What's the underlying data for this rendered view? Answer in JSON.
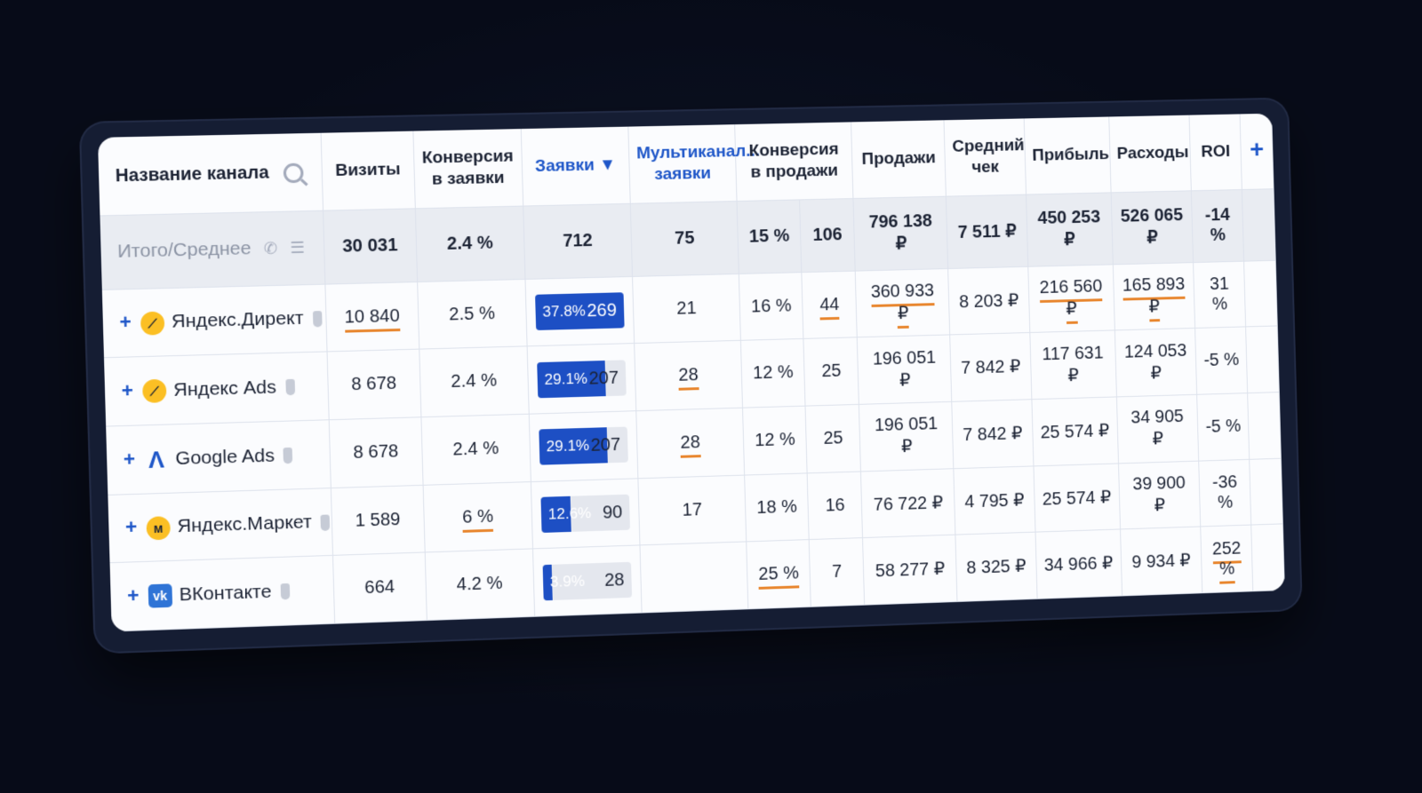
{
  "columns": {
    "channel": "Название канала",
    "visits": "Визиты",
    "conv_leads": "Конверсия в заявки",
    "leads": "Заявки ▼",
    "multi": "Мультиканал... заявки",
    "conv_sales": "Конверсия в продажи",
    "sales": "Продажи",
    "avg_check": "Средний чек",
    "profit": "Прибыль",
    "costs": "Расходы",
    "roi": "ROI",
    "add": "+"
  },
  "total": {
    "label": "Итого/Среднее",
    "visits": "30 031",
    "conv_leads": "2.4 %",
    "leads": "712",
    "multi": "75",
    "conv_sales": "15 %",
    "orders": "106",
    "sales": "796 138 ₽",
    "avg_check": "7 511 ₽",
    "profit": "450 253 ₽",
    "costs": "526 065 ₽",
    "roi": "-14 %"
  },
  "rows": [
    {
      "name": "Яндекс.Директ",
      "logo": "yandex-direct",
      "visits": "10 840",
      "conv_leads": "2.5 %",
      "leads_pct": "37.8%",
      "leads": "269",
      "leads_share": 1.0,
      "multi": "21",
      "conv_sales": "16 %",
      "orders": "44",
      "sales": "360 933 ₽",
      "avg_check": "8 203 ₽",
      "profit": "216 560 ₽",
      "costs": "165 893 ₽",
      "roi": "31 %"
    },
    {
      "name": "Яндекс Ads",
      "logo": "yandex-ads",
      "visits": "8 678",
      "conv_leads": "2.4 %",
      "leads_pct": "29.1%",
      "leads": "207",
      "leads_share": 0.77,
      "multi": "28",
      "conv_sales": "12 %",
      "orders": "25",
      "sales": "196 051 ₽",
      "avg_check": "7 842 ₽",
      "profit": "117 631 ₽",
      "costs": "124 053 ₽",
      "roi": "-5 %"
    },
    {
      "name": "Google Ads",
      "logo": "google-ads",
      "visits": "8 678",
      "conv_leads": "2.4 %",
      "leads_pct": "29.1%",
      "leads": "207",
      "leads_share": 0.77,
      "multi": "28",
      "conv_sales": "12 %",
      "orders": "25",
      "sales": "196 051 ₽",
      "avg_check": "7 842 ₽",
      "profit": "25 574 ₽",
      "costs": "34 905 ₽",
      "roi": "-5 %"
    },
    {
      "name": "Яндекс.Маркет",
      "logo": "yandex-market",
      "visits": "1 589",
      "conv_leads": "6 %",
      "leads_pct": "12.6%",
      "leads": "90",
      "leads_share": 0.34,
      "multi": "17",
      "conv_sales": "18 %",
      "orders": "16",
      "sales": "76 722 ₽",
      "avg_check": "4 795 ₽",
      "profit": "25 574 ₽",
      "costs": "39 900 ₽",
      "roi": "-36 %"
    },
    {
      "name": "ВКонтакте",
      "logo": "vkontakte",
      "visits": "664",
      "conv_leads": "4.2 %",
      "leads_pct": "3.9%",
      "leads": "28",
      "leads_share": 0.1,
      "multi": "",
      "conv_sales": "25 %",
      "orders": "7",
      "sales": "58 277 ₽",
      "avg_check": "8 325 ₽",
      "profit": "34 966 ₽",
      "costs": "9 934 ₽",
      "roi": "252 %"
    }
  ],
  "accent": "#1d4fc4",
  "highlight": "#e8862e"
}
